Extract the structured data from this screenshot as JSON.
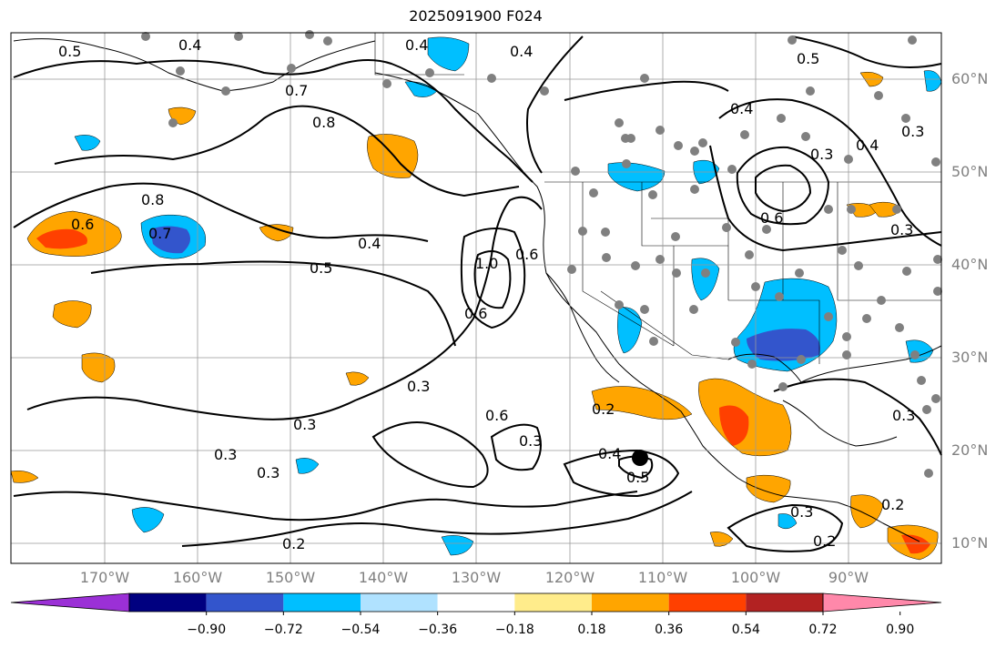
{
  "title": "2025091900 F024",
  "lat_labels": [
    "60°N",
    "50°N",
    "40°N",
    "30°N",
    "20°N",
    "10°N"
  ],
  "lon_labels": [
    "170°W",
    "160°W",
    "150°W",
    "140°W",
    "130°W",
    "120°W",
    "110°W",
    "100°W",
    "90°W"
  ],
  "colorbar": {
    "colors": [
      "#9b30d6",
      "#000080",
      "#3355cc",
      "#00bfff",
      "#b0e2ff",
      "#ffffff",
      "#ffec8b",
      "#ffa500",
      "#ff4000",
      "#b22222",
      "#ff88aa"
    ],
    "tick_labels": [
      "−0.90",
      "−0.72",
      "−0.54",
      "−0.36",
      "−0.18",
      "0.18",
      "0.36",
      "0.54",
      "0.72",
      "0.90"
    ]
  },
  "contour_labels": [
    "0.5",
    "0.4",
    "0.4",
    "0.4",
    "0.5",
    "0.7",
    "0.8",
    "0.8",
    "0.6",
    "0.7",
    "0.4",
    "0.5",
    "1.0",
    "0.6",
    "0.6",
    "0.3",
    "0.3",
    "0.3",
    "0.3",
    "0.6",
    "0.3",
    "0.2",
    "0.4",
    "0.5",
    "0.2",
    "0.3",
    "0.2",
    "0.3",
    "0.2",
    "0.4",
    "0.3",
    "0.6",
    "0.4",
    "0.3",
    "0.3"
  ]
}
